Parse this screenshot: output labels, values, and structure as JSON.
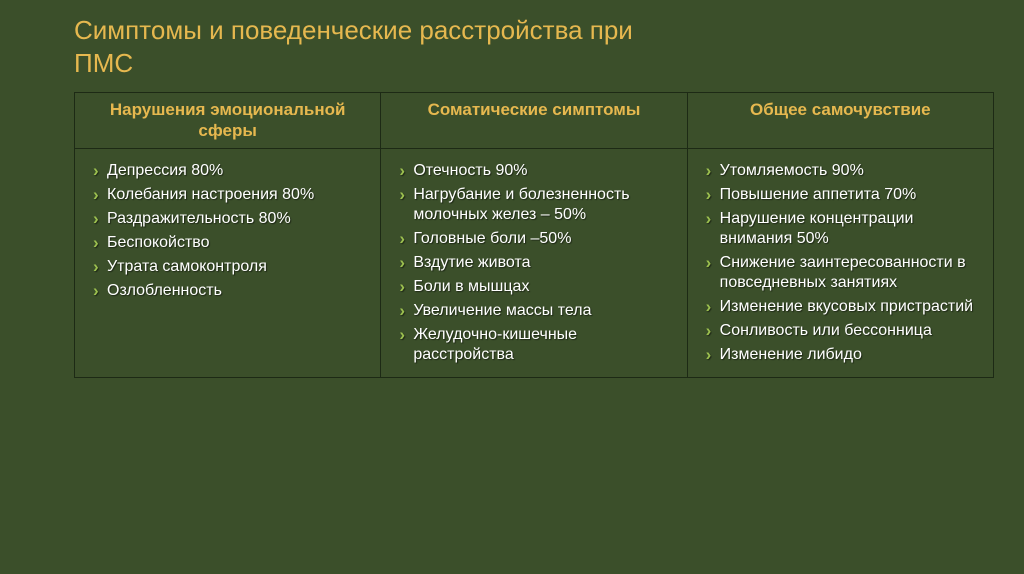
{
  "title_line1": "Симптомы и поведенческие расстройства при",
  "title_line2": "ПМС",
  "columns": {
    "col1_header": "Нарушения эмоциональной сферы",
    "col2_header": "Соматические симптомы",
    "col3_header": "Общее самочувствие"
  },
  "col1": {
    "i0": "Депрессия 80%",
    "i1": "Колебания настроения 80%",
    "i2": "Раздражительность 80%",
    "i3": "Беспокойство",
    "i4": "Утрата самоконтроля",
    "i5": "Озлобленность"
  },
  "col2": {
    "i0": "Отечность 90%",
    "i1": "Нагрубание и болезненность молочных желез – 50%",
    "i2": "Головные боли –50%",
    "i3": "Вздутие живота",
    "i4": "Боли в мышцах",
    "i5": "Увеличение массы тела",
    "i6": "Желудочно-кишечные расстройства"
  },
  "col3": {
    "i0": "Утомляемость 90%",
    "i1": "Повышение аппетита 70%",
    "i2": "Нарушение концентрации внимания 50%",
    "i3": "Снижение заинтересованности в повседневных занятиях",
    "i4": "Изменение вкусовых пристрастий",
    "i5": "Сонливость или бессонница",
    "i6": "Изменение либидо"
  }
}
